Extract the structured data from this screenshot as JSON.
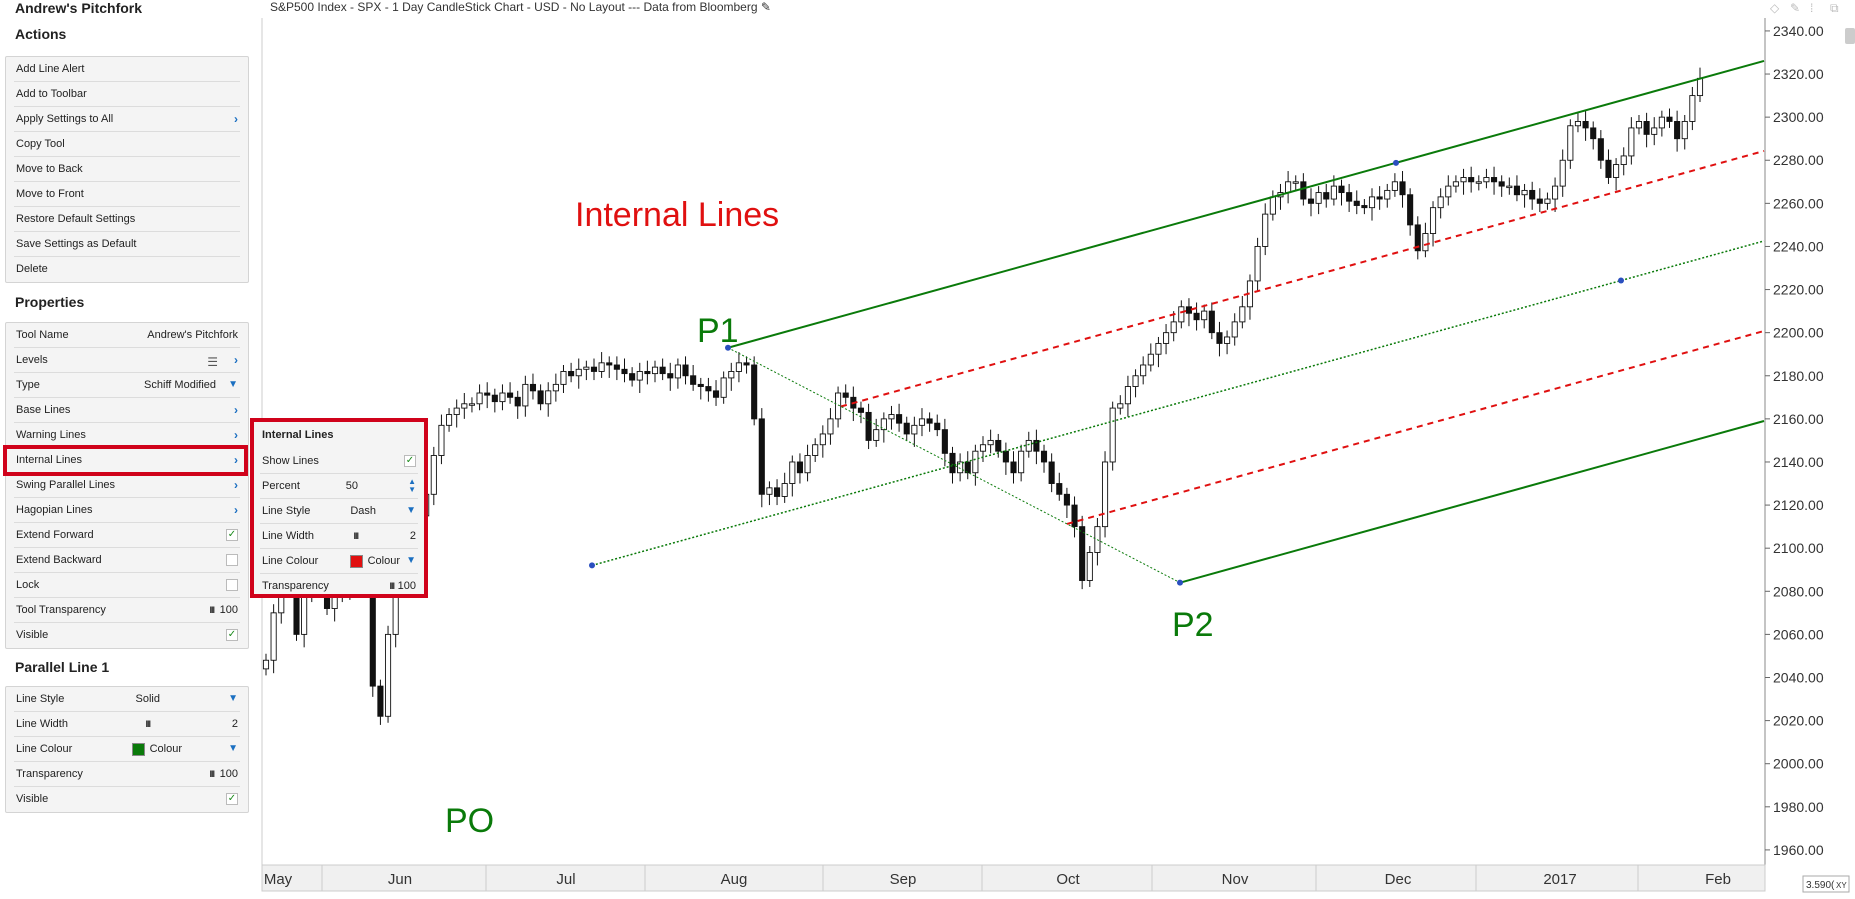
{
  "panel": {
    "title": "Andrew's Pitchfork",
    "actions_header": "Actions",
    "actions": [
      "Add Line Alert",
      "Add to Toolbar",
      "Apply Settings to All",
      "Copy Tool",
      "Move to Back",
      "Move to Front",
      "Restore Default Settings",
      "Save Settings as Default",
      "Delete"
    ],
    "properties_header": "Properties",
    "properties": {
      "tool_name_label": "Tool Name",
      "tool_name_value": "Andrew's Pitchfork",
      "levels_label": "Levels",
      "type_label": "Type",
      "type_value": "Schiff Modified",
      "base_lines_label": "Base Lines",
      "warning_lines_label": "Warning Lines",
      "internal_lines_label": "Internal Lines",
      "swing_parallel_label": "Swing Parallel Lines",
      "hagopian_label": "Hagopian Lines",
      "extend_forward_label": "Extend Forward",
      "extend_forward_checked": true,
      "extend_backward_label": "Extend Backward",
      "extend_backward_checked": false,
      "lock_label": "Lock",
      "lock_checked": false,
      "tool_transparency_label": "Tool Transparency",
      "tool_transparency_value": "100",
      "visible_label": "Visible",
      "visible_checked": true
    },
    "parallel_header": "Parallel Line 1",
    "parallel": {
      "line_style_label": "Line Style",
      "line_style_value": "Solid",
      "line_width_label": "Line Width",
      "line_width_value": "2",
      "line_colour_label": "Line Colour",
      "line_colour_value": "Colour",
      "line_colour_hex": "#0a7a0a",
      "transparency_label": "Transparency",
      "transparency_value": "100",
      "visible_label": "Visible"
    }
  },
  "popup": {
    "title": "Internal Lines",
    "show_lines_label": "Show Lines",
    "percent_label": "Percent",
    "percent_value": "50",
    "line_style_label": "Line Style",
    "line_style_value": "Dash",
    "line_width_label": "Line Width",
    "line_width_value": "2",
    "line_colour_label": "Line Colour",
    "line_colour_value": "Colour",
    "line_colour_hex": "#e01010",
    "transparency_label": "Transparency",
    "transparency_value": "100"
  },
  "chart": {
    "header": "S&P500 Index - SPX - 1 Day CandleStick Chart - USD - No Layout --- Data from Bloomberg",
    "annotation": "Internal Lines",
    "labels": {
      "p0": "PO",
      "p1": "P1",
      "p2": "P2"
    },
    "zoom": "3.590(",
    "zoom_suffix": "XY",
    "colors": {
      "pitchfork": "#0a7a0a",
      "internal": "#e01010",
      "annotation": "#e01010",
      "point_labels": "#0a7a0a"
    }
  },
  "chart_data": {
    "type": "candlestick",
    "title": "S&P500 Index - SPX - 1 Day CandleStick Chart - USD - No Layout --- Data from Bloomberg",
    "x_tick_labels": [
      "May",
      "Jun",
      "Jul",
      "Aug",
      "Sep",
      "Oct",
      "Nov",
      "Dec",
      "2017",
      "Feb"
    ],
    "y_tick_labels": [
      "1960.00",
      "1980.00",
      "2000.00",
      "2020.00",
      "2040.00",
      "2060.00",
      "2080.00",
      "2100.00",
      "2120.00",
      "2140.00",
      "2160.00",
      "2180.00",
      "2200.00",
      "2220.00",
      "2240.00",
      "2260.00",
      "2280.00",
      "2300.00",
      "2320.00",
      "2340.00"
    ],
    "ylim": [
      1953,
      2346
    ],
    "close_path": [
      2048,
      2070,
      2088,
      2093,
      2060,
      2080,
      2096,
      2090,
      2072,
      2090,
      2080,
      2100,
      2114,
      2095,
      2036,
      2022,
      2060,
      2090,
      2102,
      2098,
      2115,
      2125,
      2143,
      2157,
      2162,
      2165,
      2167,
      2167,
      2172,
      2171,
      2168,
      2172,
      2170,
      2166,
      2176,
      2173,
      2167,
      2173,
      2176,
      2182,
      2180,
      2183,
      2184,
      2182,
      2186,
      2185,
      2183,
      2181,
      2178,
      2182,
      2181,
      2184,
      2181,
      2179,
      2185,
      2180,
      2176,
      2175,
      2173,
      2170,
      2179,
      2182,
      2186,
      2185,
      2160,
      2125,
      2128,
      2124,
      2130,
      2140,
      2135,
      2143,
      2148,
      2153,
      2160,
      2172,
      2170,
      2165,
      2163,
      2150,
      2155,
      2160,
      2162,
      2158,
      2153,
      2157,
      2160,
      2158,
      2155,
      2144,
      2135,
      2140,
      2135,
      2145,
      2148,
      2150,
      2145,
      2140,
      2135,
      2145,
      2150,
      2145,
      2140,
      2130,
      2125,
      2120,
      2110,
      2085,
      2098,
      2110,
      2140,
      2165,
      2167,
      2175,
      2180,
      2185,
      2190,
      2195,
      2200,
      2205,
      2212,
      2209,
      2206,
      2210,
      2200,
      2195,
      2198,
      2205,
      2212,
      2224,
      2240,
      2255,
      2263,
      2265,
      2270,
      2270,
      2262,
      2260,
      2265,
      2262,
      2268,
      2265,
      2261,
      2259,
      2258,
      2263,
      2262,
      2266,
      2270,
      2264,
      2250,
      2238,
      2246,
      2258,
      2263,
      2268,
      2270,
      2272,
      2270,
      2270,
      2272,
      2270,
      2268,
      2268,
      2264,
      2266,
      2262,
      2260,
      2262,
      2268,
      2280,
      2296,
      2298,
      2295,
      2290,
      2280,
      2272,
      2278,
      2282,
      2295,
      2298,
      2292,
      2295,
      2300,
      2298,
      2290,
      2298,
      2310,
      2318
    ],
    "pitchfork": {
      "p0": {
        "date": "Jun 27",
        "price": 1992
      },
      "p1": {
        "date": "Aug 15",
        "price": 2193
      },
      "p2": {
        "date": "Nov 4",
        "price": 2084
      },
      "type": "Schiff Modified"
    },
    "internal_lines_percent": 50
  }
}
